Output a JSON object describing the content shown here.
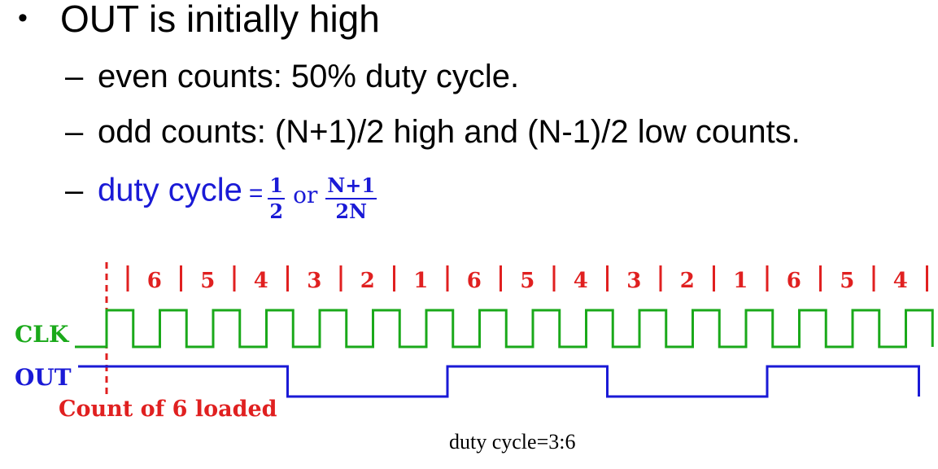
{
  "bullets": {
    "main": "OUT is initially high",
    "sub1": "even counts: 50% duty cycle.",
    "sub2": "odd counts: (N+1)/2 high and (N-1)/2 low counts.",
    "sub3_prefix": "duty cycle",
    "sub3_eq": "=",
    "frac1_num": "1",
    "frac1_den": "2",
    "or": "or",
    "frac2_num": "N+1",
    "frac2_den": "2N"
  },
  "timing": {
    "counts": [
      "6",
      "5",
      "4",
      "3",
      "2",
      "1",
      "6",
      "5",
      "4",
      "3",
      "2",
      "1",
      "6",
      "5",
      "4"
    ],
    "clk_label": "CLK",
    "out_label": "OUT",
    "load_label": "Count of 6 loaded",
    "out_levels": [
      1,
      1,
      1,
      0,
      0,
      0,
      1,
      1,
      1,
      0,
      0,
      0,
      1,
      1,
      1
    ],
    "colors": {
      "clk": "#1aa91a",
      "out": "#1a1ad6",
      "count": "#e02020"
    }
  },
  "footer": {
    "note": "duty cycle=3:6"
  }
}
